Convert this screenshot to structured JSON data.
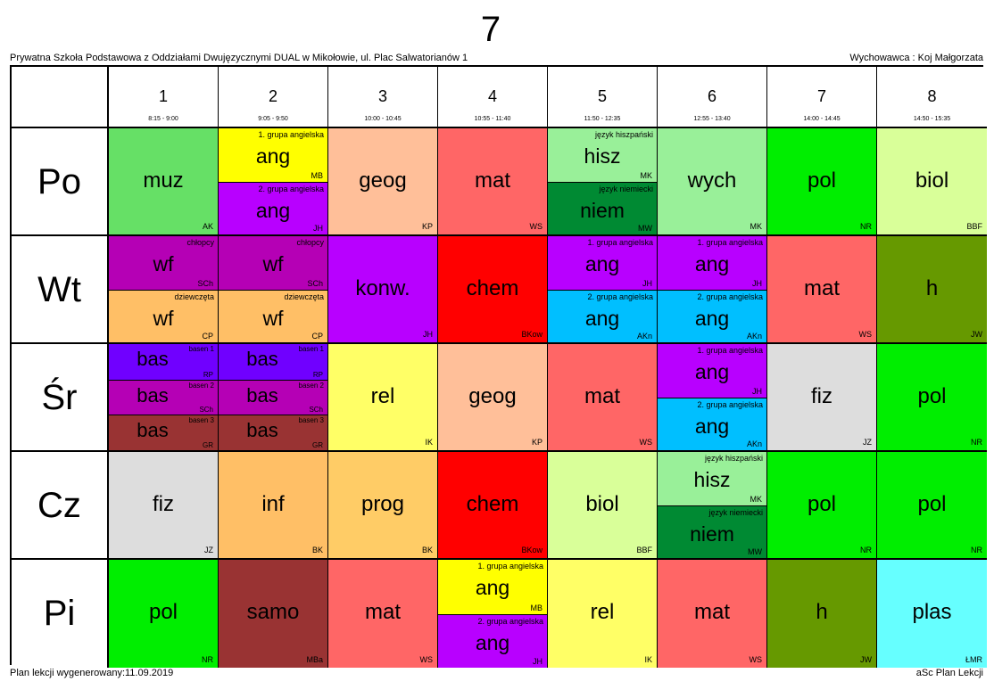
{
  "title": "7",
  "school": "Prywatna Szkoła Podstawowa z Oddziałami Dwujęzycznymi DUAL w Mikołowie, ul. Plac Salwatorianów 1",
  "homeroom": "Wychowawca : Koj Małgorzata",
  "footer_left": "Plan lekcji wygenerowany:11.09.2019",
  "footer_right": "aSc Plan Lekcji",
  "periods": [
    {
      "num": "1",
      "time": "8:15 - 9:00"
    },
    {
      "num": "2",
      "time": "9:05 - 9:50"
    },
    {
      "num": "3",
      "time": "10:00 - 10:45"
    },
    {
      "num": "4",
      "time": "10:55 - 11:40"
    },
    {
      "num": "5",
      "time": "11:50 - 12:35"
    },
    {
      "num": "6",
      "time": "12:55 - 13:40"
    },
    {
      "num": "7",
      "time": "14:00 - 14:45"
    },
    {
      "num": "8",
      "time": "14:50 - 15:35"
    }
  ],
  "days": [
    {
      "name": "Po",
      "cells": [
        [
          {
            "subject": "muz",
            "teacher": "AK",
            "color": "#66e066"
          }
        ],
        [
          {
            "group": "1. grupa angielska",
            "subject": "ang",
            "teacher": "MB",
            "color": "#ffff00"
          },
          {
            "group": "2. grupa angielska",
            "subject": "ang",
            "teacher": "JH",
            "color": "#b800ff"
          }
        ],
        [
          {
            "subject": "geog",
            "teacher": "KP",
            "color": "#ffbf99"
          }
        ],
        [
          {
            "subject": "mat",
            "teacher": "WS",
            "color": "#ff6666"
          }
        ],
        [
          {
            "group": "język hiszpański",
            "subject": "hisz",
            "teacher": "MK",
            "color": "#99f099"
          },
          {
            "group": "język niemiecki",
            "subject": "niem",
            "teacher": "MW",
            "color": "#008a33"
          }
        ],
        [
          {
            "subject": "wych",
            "teacher": "MK",
            "color": "#99f099"
          }
        ],
        [
          {
            "subject": "pol",
            "teacher": "NR",
            "color": "#00ee00"
          }
        ],
        [
          {
            "subject": "biol",
            "teacher": "BBF",
            "color": "#d9ff99"
          }
        ]
      ]
    },
    {
      "name": "Wt",
      "cells": [
        [
          {
            "group": "chłopcy",
            "subject": "wf",
            "teacher": "SCh",
            "color": "#b500b5"
          },
          {
            "group": "dziewczęta",
            "subject": "wf",
            "teacher": "CP",
            "color": "#ffbf66"
          }
        ],
        [
          {
            "group": "chłopcy",
            "subject": "wf",
            "teacher": "SCh",
            "color": "#b500b5"
          },
          {
            "group": "dziewczęta",
            "subject": "wf",
            "teacher": "CP",
            "color": "#ffbf66"
          }
        ],
        [
          {
            "subject": "konw.",
            "teacher": "JH",
            "color": "#b800ff"
          }
        ],
        [
          {
            "subject": "chem",
            "teacher": "BKow",
            "color": "#ff0000"
          }
        ],
        [
          {
            "group": "1. grupa angielska",
            "subject": "ang",
            "teacher": "JH",
            "color": "#b800ff"
          },
          {
            "group": "2. grupa angielska",
            "subject": "ang",
            "teacher": "AKn",
            "color": "#00bfff"
          }
        ],
        [
          {
            "group": "1. grupa angielska",
            "subject": "ang",
            "teacher": "JH",
            "color": "#b800ff"
          },
          {
            "group": "2. grupa angielska",
            "subject": "ang",
            "teacher": "AKn",
            "color": "#00bfff"
          }
        ],
        [
          {
            "subject": "mat",
            "teacher": "WS",
            "color": "#ff6666"
          }
        ],
        [
          {
            "subject": "h",
            "teacher": "JW",
            "color": "#669900"
          }
        ]
      ]
    },
    {
      "name": "Śr",
      "cells": [
        [
          {
            "group": "basen 1",
            "subject": "bas",
            "teacher": "RP",
            "color": "#7000ff"
          },
          {
            "group": "basen 2",
            "subject": "bas",
            "teacher": "SCh",
            "color": "#b500b5"
          },
          {
            "group": "basen 3",
            "subject": "bas",
            "teacher": "GR",
            "color": "#993333"
          }
        ],
        [
          {
            "group": "basen 1",
            "subject": "bas",
            "teacher": "RP",
            "color": "#7000ff"
          },
          {
            "group": "basen 2",
            "subject": "bas",
            "teacher": "SCh",
            "color": "#b500b5"
          },
          {
            "group": "basen 3",
            "subject": "bas",
            "teacher": "GR",
            "color": "#993333"
          }
        ],
        [
          {
            "subject": "rel",
            "teacher": "IK",
            "color": "#ffff66"
          }
        ],
        [
          {
            "subject": "geog",
            "teacher": "KP",
            "color": "#ffbf99"
          }
        ],
        [
          {
            "subject": "mat",
            "teacher": "WS",
            "color": "#ff6666"
          }
        ],
        [
          {
            "group": "1. grupa angielska",
            "subject": "ang",
            "teacher": "JH",
            "color": "#b800ff"
          },
          {
            "group": "2. grupa angielska",
            "subject": "ang",
            "teacher": "AKn",
            "color": "#00bfff"
          }
        ],
        [
          {
            "subject": "fiz",
            "teacher": "JZ",
            "color": "#dddddd"
          }
        ],
        [
          {
            "subject": "pol",
            "teacher": "NR",
            "color": "#00ee00"
          }
        ]
      ]
    },
    {
      "name": "Cz",
      "cells": [
        [
          {
            "subject": "fiz",
            "teacher": "JZ",
            "color": "#dddddd"
          }
        ],
        [
          {
            "subject": "inf",
            "teacher": "BK",
            "color": "#ffbf66"
          }
        ],
        [
          {
            "subject": "prog",
            "teacher": "BK",
            "color": "#ffcc66"
          }
        ],
        [
          {
            "subject": "chem",
            "teacher": "BKow",
            "color": "#ff0000"
          }
        ],
        [
          {
            "subject": "biol",
            "teacher": "BBF",
            "color": "#d9ff99"
          }
        ],
        [
          {
            "group": "język hiszpański",
            "subject": "hisz",
            "teacher": "MK",
            "color": "#99f099"
          },
          {
            "group": "język niemiecki",
            "subject": "niem",
            "teacher": "MW",
            "color": "#008a33"
          }
        ],
        [
          {
            "subject": "pol",
            "teacher": "NR",
            "color": "#00ee00"
          }
        ],
        [
          {
            "subject": "pol",
            "teacher": "NR",
            "color": "#00ee00"
          }
        ]
      ]
    },
    {
      "name": "Pi",
      "cells": [
        [
          {
            "subject": "pol",
            "teacher": "NR",
            "color": "#00ee00"
          }
        ],
        [
          {
            "subject": "samo",
            "teacher": "MBa",
            "color": "#993333"
          }
        ],
        [
          {
            "subject": "mat",
            "teacher": "WS",
            "color": "#ff6666"
          }
        ],
        [
          {
            "group": "1. grupa angielska",
            "subject": "ang",
            "teacher": "MB",
            "color": "#ffff00"
          },
          {
            "group": "2. grupa angielska",
            "subject": "ang",
            "teacher": "JH",
            "color": "#b800ff"
          }
        ],
        [
          {
            "subject": "rel",
            "teacher": "IK",
            "color": "#ffff66"
          }
        ],
        [
          {
            "subject": "mat",
            "teacher": "WS",
            "color": "#ff6666"
          }
        ],
        [
          {
            "subject": "h",
            "teacher": "JW",
            "color": "#669900"
          }
        ],
        [
          {
            "subject": "plas",
            "teacher": "ŁMR",
            "color": "#66ffff"
          }
        ]
      ]
    }
  ]
}
